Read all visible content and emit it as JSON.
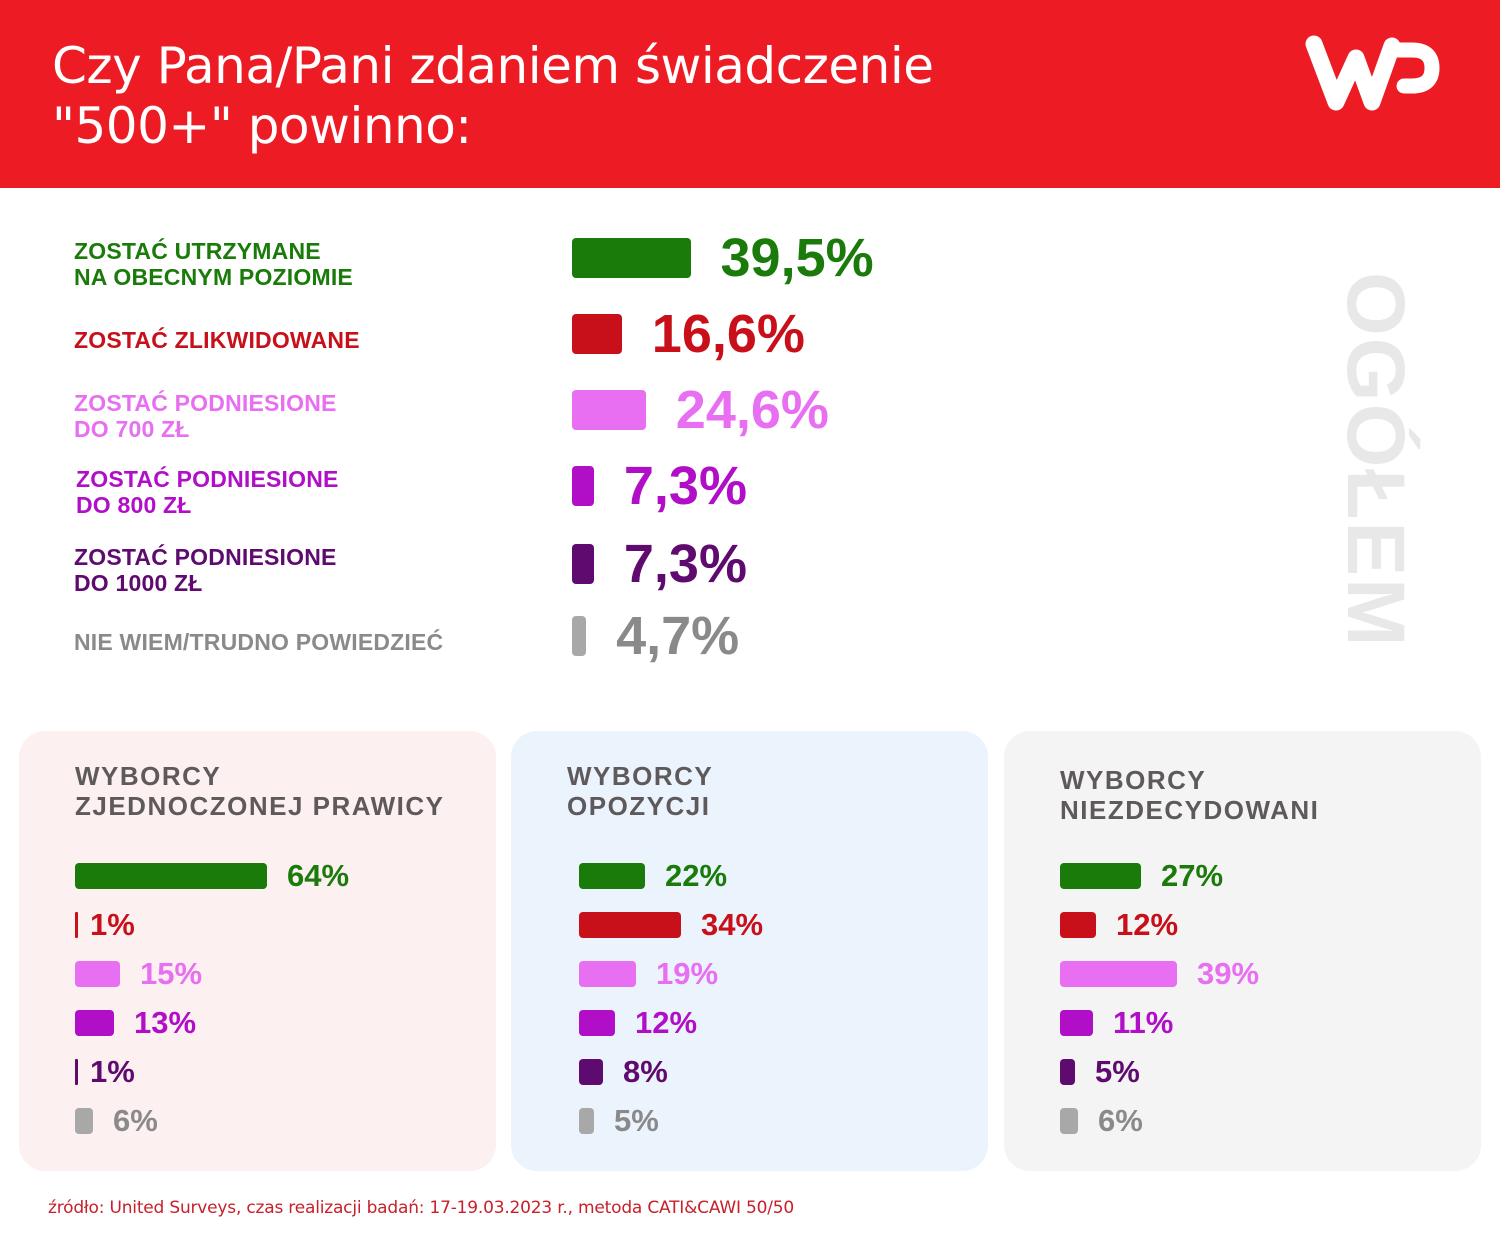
{
  "header": {
    "title": "Czy Pana/Pani zdaniem świadczenie\n\"500+\" powinno:",
    "logo": "WP",
    "background": "#ed1c24"
  },
  "side_label": "OGÓŁEM",
  "footer": {
    "source": "źródło: United Surveys, czas realizacji badań: 17-19.03.2023 r., metoda CATI&CAWI 50/50"
  },
  "colors": {
    "keep": "#1a7a0a",
    "abolish": "#c8101a",
    "raise700": "#e86ef2",
    "raise800": "#b10fc7",
    "raise1000": "#5e0a6e",
    "dontknow": "#a8a8a8",
    "dontknow_text": "#8a8a8a"
  },
  "chart_data": [
    {
      "type": "bar",
      "title": "Czy Pana/Pani zdaniem świadczenie \"500+\" powinno:",
      "subtitle": "OGÓŁEM",
      "categories": [
        "ZOSTAĆ UTRZYMANE\nNA OBECNYM POZIOMIE",
        "ZOSTAĆ ZLIKWIDOWANE",
        "ZOSTAĆ PODNIESIONE\nDO 700 ZŁ",
        "ZOSTAĆ PODNIESIONE\nDO 800 ZŁ",
        "ZOSTAĆ PODNIESIONE\nDO 1000 ZŁ",
        "NIE WIEM/TRUDNO POWIEDZIEĆ"
      ],
      "values": [
        39.5,
        16.6,
        24.6,
        7.3,
        7.3,
        4.7
      ],
      "value_labels": [
        "39,5%",
        "16,6%",
        "24,6%",
        "7,3%",
        "7,3%",
        "4,7%"
      ],
      "unit": "%",
      "orientation": "horizontal"
    },
    {
      "type": "bar",
      "title": "WYBORCY\nZJEDNOCZONEJ PRAWICY",
      "background": "#fdf0f0",
      "categories": [
        "ZOSTAĆ UTRZYMANE NA OBECNYM POZIOMIE",
        "ZOSTAĆ ZLIKWIDOWANE",
        "ZOSTAĆ PODNIESIONE DO 700 ZŁ",
        "ZOSTAĆ PODNIESIONE DO 800 ZŁ",
        "ZOSTAĆ PODNIESIONE DO 1000 ZŁ",
        "NIE WIEM/TRUDNO POWIEDZIEĆ"
      ],
      "values": [
        64,
        1,
        15,
        13,
        1,
        6
      ],
      "value_labels": [
        "64%",
        "1%",
        "15%",
        "13%",
        "1%",
        "6%"
      ],
      "unit": "%",
      "orientation": "horizontal"
    },
    {
      "type": "bar",
      "title": "WYBORCY\nOPOZYCJI",
      "background": "#ebf3fd",
      "categories": [
        "ZOSTAĆ UTRZYMANE NA OBECNYM POZIOMIE",
        "ZOSTAĆ ZLIKWIDOWANE",
        "ZOSTAĆ PODNIESIONE DO 700 ZŁ",
        "ZOSTAĆ PODNIESIONE DO 800 ZŁ",
        "ZOSTAĆ PODNIESIONE DO 1000 ZŁ",
        "NIE WIEM/TRUDNO POWIEDZIEĆ"
      ],
      "values": [
        22,
        34,
        19,
        12,
        8,
        5
      ],
      "value_labels": [
        "22%",
        "34%",
        "19%",
        "12%",
        "8%",
        "5%"
      ],
      "unit": "%",
      "orientation": "horizontal"
    },
    {
      "type": "bar",
      "title": "WYBORCY\nNIEZDECYDOWANI",
      "background": "#f4f4f4",
      "categories": [
        "ZOSTAĆ UTRZYMANE NA OBECNYM POZIOMIE",
        "ZOSTAĆ ZLIKWIDOWANE",
        "ZOSTAĆ PODNIESIONE DO 700 ZŁ",
        "ZOSTAĆ PODNIESIONE DO 800 ZŁ",
        "ZOSTAĆ PODNIESIONE DO 1000 ZŁ",
        "NIE WIEM/TRUDNO POWIEDZIEĆ"
      ],
      "values": [
        27,
        12,
        39,
        11,
        5,
        6
      ],
      "value_labels": [
        "27%",
        "12%",
        "39%",
        "11%",
        "5%",
        "6%"
      ],
      "unit": "%",
      "orientation": "horizontal"
    }
  ]
}
